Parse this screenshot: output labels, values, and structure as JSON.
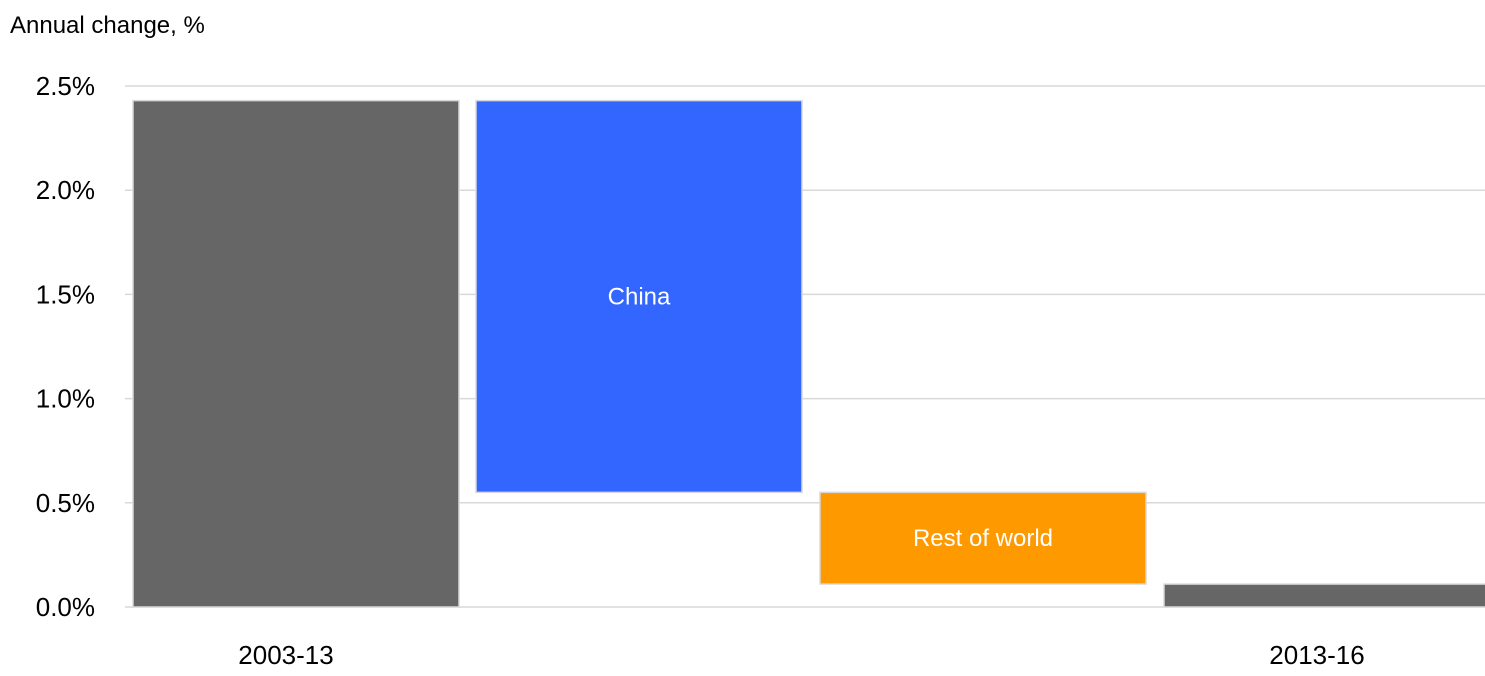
{
  "chart_data": {
    "type": "bar",
    "subtype": "waterfall",
    "ylabel": "Annual change, %",
    "ylim": [
      0,
      2.5
    ],
    "yticks": [
      "0.0%",
      "0.5%",
      "1.0%",
      "1.5%",
      "2.0%",
      "2.5%"
    ],
    "ytick_values": [
      0,
      0.5,
      1.0,
      1.5,
      2.0,
      2.5
    ],
    "grid": true,
    "categories": [
      "2003-13",
      "",
      "",
      "2013-16"
    ],
    "bars": [
      {
        "category": "2003-13",
        "label": "",
        "base": 0,
        "top": 2.43,
        "color": "#666666"
      },
      {
        "category": "",
        "label": "China",
        "base": 0.55,
        "top": 2.43,
        "color": "#3366ff"
      },
      {
        "category": "",
        "label": "Rest of world",
        "base": 0.11,
        "top": 0.55,
        "color": "#ff9900"
      },
      {
        "category": "2013-16",
        "label": "",
        "base": 0,
        "top": 0.11,
        "color": "#666666"
      }
    ],
    "colors": {
      "total": "#666666",
      "china": "#3366ff",
      "rest_of_world": "#ff9900",
      "grid": "#d9d9d9"
    }
  }
}
